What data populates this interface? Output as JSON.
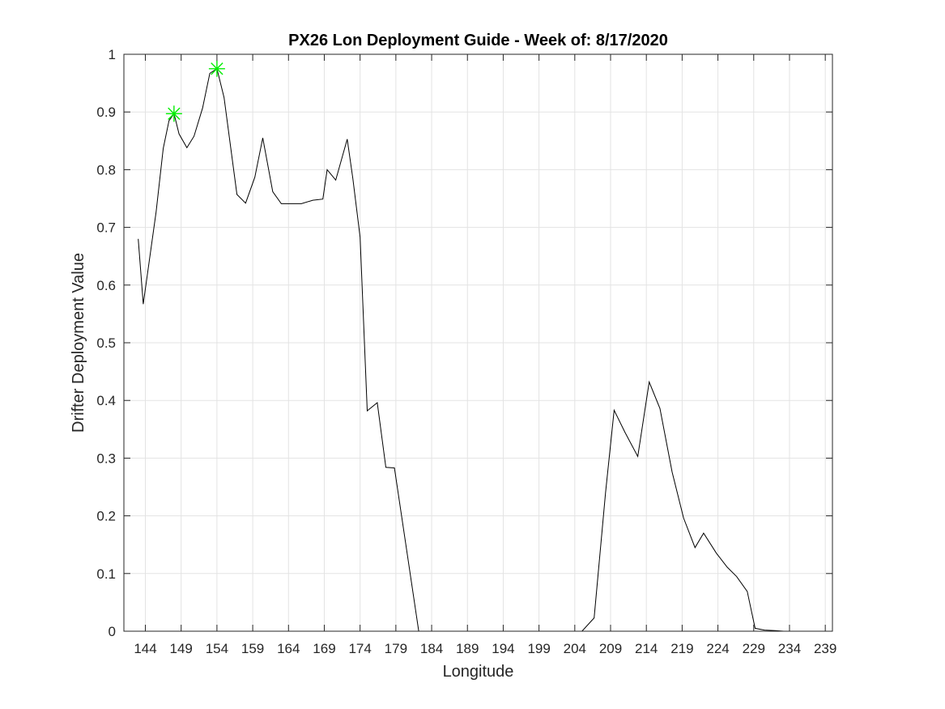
{
  "chart_data": {
    "type": "line",
    "title": "PX26 Lon Deployment Guide - Week of: 8/17/2020",
    "xlabel": "Longitude",
    "ylabel": "Drifter Deployment Value",
    "xlim": [
      141,
      240
    ],
    "ylim": [
      0,
      1
    ],
    "xticks": [
      144,
      149,
      154,
      159,
      164,
      169,
      174,
      179,
      184,
      189,
      194,
      199,
      204,
      209,
      214,
      219,
      224,
      229,
      234,
      239
    ],
    "yticks": [
      0,
      0.1,
      0.2,
      0.3,
      0.4,
      0.5,
      0.6,
      0.7,
      0.8,
      0.9,
      1
    ],
    "ytick_labels": [
      "0",
      "0.1",
      "0.2",
      "0.3",
      "0.4",
      "0.5",
      "0.6",
      "0.7",
      "0.8",
      "0.9",
      "1"
    ],
    "grid": true,
    "series": [
      {
        "color": "#000000",
        "x": [
          143,
          143.7,
          145.5,
          146.5,
          147.3,
          148,
          148.7,
          149.8,
          150.8,
          152,
          153,
          154,
          155,
          156.8,
          158,
          159.3,
          160.4,
          161.8,
          163,
          164,
          165.8,
          167.4,
          168.8,
          169.4,
          170.6,
          172.2,
          173,
          174,
          175,
          176.4,
          177.6,
          178.8,
          180.4,
          182.2,
          183,
          184,
          190,
          200,
          205,
          206.7,
          208.3,
          209.5,
          211,
          212.8,
          214.4,
          215.9,
          217.6,
          219.2,
          220.8,
          222,
          223.8,
          225.3,
          226.6,
          228.1,
          229.2,
          230.5,
          232,
          233.2,
          237.1
        ],
        "y": [
          0.68,
          0.567,
          0.727,
          0.837,
          0.885,
          0.897,
          0.862,
          0.838,
          0.858,
          0.907,
          0.967,
          0.975,
          0.925,
          0.757,
          0.742,
          0.787,
          0.855,
          0.762,
          0.741,
          0.741,
          0.741,
          0.747,
          0.749,
          0.8,
          0.782,
          0.853,
          0.784,
          0.683,
          0.382,
          0.396,
          0.284,
          0.283,
          0.15,
          0.0,
          0.0,
          0.0,
          0.0,
          0.0,
          0.0,
          0.023,
          0.24,
          0.383,
          0.345,
          0.303,
          0.432,
          0.386,
          0.276,
          0.196,
          0.145,
          0.17,
          0.135,
          0.111,
          0.095,
          0.069,
          0.005,
          0.002,
          0.001,
          0.0,
          0.0
        ]
      }
    ],
    "markers": [
      {
        "x": 148,
        "y": 0.897,
        "symbol": "asterisk",
        "color": "#00ee00"
      },
      {
        "x": 154,
        "y": 0.975,
        "symbol": "asterisk",
        "color": "#00ee00"
      }
    ]
  }
}
